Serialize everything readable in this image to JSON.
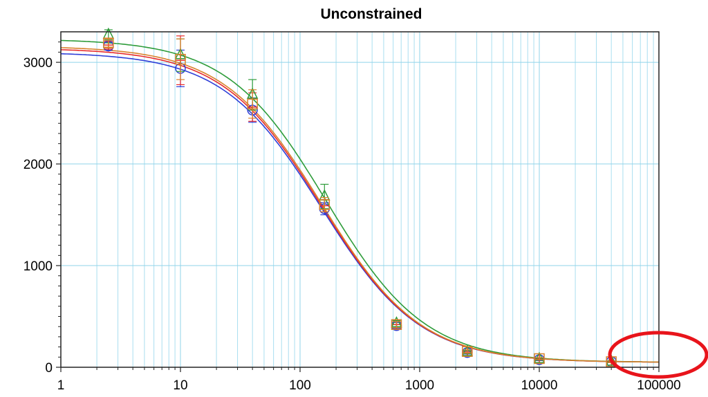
{
  "chart_data": {
    "type": "scatter",
    "title": "Unconstrained",
    "xlabel": "",
    "ylabel": "",
    "x_scale": "log",
    "xlim": [
      1,
      100000
    ],
    "ylim": [
      0,
      3300
    ],
    "x_ticks": [
      1,
      10,
      100,
      1000,
      10000,
      100000
    ],
    "x_tick_labels": [
      "1",
      "10",
      "100",
      "1000",
      "10000",
      "100000"
    ],
    "y_ticks": [
      0,
      1000,
      2000,
      3000
    ],
    "y_tick_labels": [
      "0",
      "1000",
      "2000",
      "3000"
    ],
    "grid": true,
    "x": [
      2.5,
      10,
      40,
      160,
      640,
      2500,
      10000,
      40000
    ],
    "series": [
      {
        "color": "#2f3fd8",
        "marker": "circle",
        "values": [
          3160,
          2940,
          2530,
          1560,
          410,
          145,
          75,
          55
        ],
        "error": [
          40,
          180,
          120,
          60,
          30,
          15,
          10,
          8
        ],
        "fit": {
          "top": 3100,
          "bottom": 48,
          "ec50": 150,
          "hill": 1.05
        }
      },
      {
        "color": "#e82a2a",
        "marker": "plus",
        "values": [
          3170,
          3020,
          2560,
          1590,
          420,
          150,
          80,
          55
        ],
        "error": [
          40,
          240,
          140,
          60,
          30,
          15,
          10,
          8
        ],
        "fit": {
          "top": 3140,
          "bottom": 48,
          "ec50": 150,
          "hill": 1.05
        }
      },
      {
        "color": "#2e9c3a",
        "marker": "triangle",
        "values": [
          3270,
          3070,
          2680,
          1680,
          430,
          150,
          80,
          55
        ],
        "error": [
          50,
          160,
          150,
          120,
          30,
          15,
          10,
          8
        ],
        "fit": {
          "top": 3230,
          "bottom": 48,
          "ec50": 165,
          "hill": 1.05
        }
      },
      {
        "color": "#d9822b",
        "marker": "square",
        "values": [
          3190,
          3030,
          2590,
          1600,
          420,
          155,
          85,
          55
        ],
        "error": [
          40,
          200,
          140,
          70,
          30,
          15,
          10,
          8
        ],
        "fit": {
          "top": 3160,
          "bottom": 48,
          "ec50": 152,
          "hill": 1.05
        }
      }
    ]
  },
  "annotation": {
    "shape": "ellipse",
    "color": "#e8141b"
  }
}
